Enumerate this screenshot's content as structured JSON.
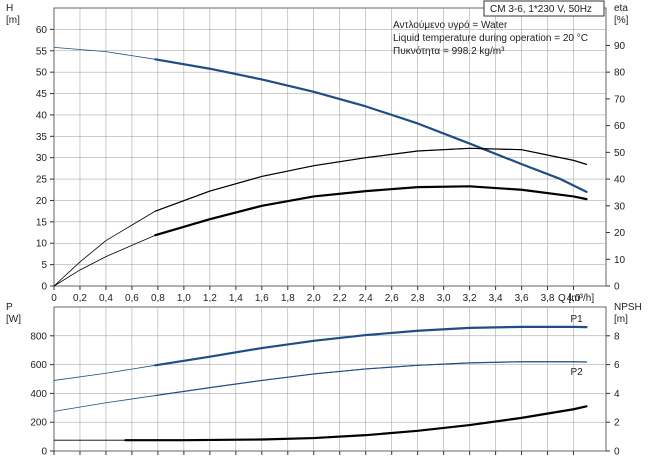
{
  "header": {
    "model_label": "CM 3-6, 1*230 V, 50Hz",
    "info_lines": [
      "Αντλούμενο υγρό = Water",
      "Liquid temperature during operation = 20 °C",
      "Πυκνότητα = 998.2 kg/m³"
    ]
  },
  "colors": {
    "blue": "#1f4e86",
    "black": "#000000",
    "grid": "#999999"
  },
  "chart_data": [
    {
      "type": "line",
      "name": "head-efficiency",
      "y_axis": {
        "letter": "H",
        "unit": "[m]",
        "lim": [
          0,
          65
        ],
        "ticks": [
          0,
          5,
          10,
          15,
          20,
          25,
          30,
          35,
          40,
          45,
          50,
          55,
          60
        ]
      },
      "y2_axis": {
        "letter": "eta",
        "unit": "[%]",
        "lim": [
          0,
          104
        ],
        "ticks": [
          0,
          10,
          20,
          30,
          40,
          50,
          60,
          70,
          80,
          90
        ]
      },
      "x_axis": {
        "label": "Q [m³/h]",
        "lim": [
          0,
          4.25
        ],
        "tick_values": [
          0,
          0.2,
          0.4,
          0.6,
          0.8,
          1.0,
          1.2,
          1.4,
          1.6,
          1.8,
          2.0,
          2.2,
          2.4,
          2.6,
          2.8,
          3.0,
          3.2,
          3.4,
          3.6,
          3.8,
          4.0
        ],
        "tick_labels": [
          "0",
          "0,2",
          "0,4",
          "0,6",
          "0,8",
          "1,0",
          "1,2",
          "1,4",
          "1,6",
          "1,8",
          "2,0",
          "2,2",
          "2,4",
          "2,6",
          "2,8",
          "3,0",
          "3,2",
          "3,4",
          "3,6",
          "3,8",
          "4,0"
        ]
      },
      "series": [
        {
          "axis": "y",
          "color": "blue",
          "width": 2.2,
          "from": 0.78,
          "x": [
            0,
            0.4,
            0.78,
            1.2,
            1.6,
            2.0,
            2.4,
            2.8,
            3.2,
            3.6,
            3.9,
            4.1
          ],
          "y": [
            55.8,
            54.8,
            53.0,
            50.8,
            48.3,
            45.4,
            42.0,
            38.0,
            33.3,
            28.5,
            25.0,
            22.0
          ]
        },
        {
          "axis": "y2",
          "color": "black",
          "width": 1.2,
          "from": 0.78,
          "x": [
            0,
            0.2,
            0.4,
            0.78,
            1.2,
            1.6,
            2.0,
            2.4,
            2.8,
            3.2,
            3.6,
            4.0,
            4.1
          ],
          "y": [
            0,
            9,
            17,
            28,
            35.5,
            41,
            45,
            48,
            50.5,
            51.5,
            51,
            47,
            45.5
          ]
        },
        {
          "axis": "y2",
          "color": "black",
          "width": 2.2,
          "from": 0.78,
          "x": [
            0,
            0.2,
            0.4,
            0.78,
            1.2,
            1.6,
            2.0,
            2.4,
            2.8,
            3.2,
            3.6,
            4.0,
            4.1
          ],
          "y": [
            0,
            6,
            11,
            19,
            25,
            30,
            33.5,
            35.5,
            37,
            37.3,
            36,
            33.5,
            32.5
          ]
        }
      ]
    },
    {
      "type": "line",
      "name": "power-npsh",
      "y_axis": {
        "letter": "P",
        "unit": "[W]",
        "lim": [
          0,
          1000
        ],
        "ticks": [
          0,
          200,
          400,
          600,
          800
        ]
      },
      "y2_axis": {
        "letter": "NPSH",
        "unit": "[m]",
        "lim": [
          0,
          10
        ],
        "ticks": [
          0,
          2,
          4,
          6,
          8
        ]
      },
      "x_axis": {
        "lim": [
          0,
          4.25
        ],
        "tick_values": [
          0,
          0.2,
          0.4,
          0.6,
          0.8,
          1.0,
          1.2,
          1.4,
          1.6,
          1.8,
          2.0,
          2.2,
          2.4,
          2.6,
          2.8,
          3.0,
          3.2,
          3.4,
          3.6,
          3.8,
          4.0
        ]
      },
      "series": [
        {
          "name": "P1",
          "axis": "y",
          "color": "blue",
          "width": 2.2,
          "from": 0.78,
          "x": [
            0,
            0.4,
            0.78,
            1.2,
            1.6,
            2.0,
            2.4,
            2.8,
            3.2,
            3.6,
            4.0,
            4.1
          ],
          "y": [
            490,
            540,
            595,
            655,
            715,
            765,
            805,
            835,
            855,
            862,
            862,
            860
          ]
        },
        {
          "name": "P2",
          "axis": "y",
          "color": "blue",
          "width": 1.2,
          "from": 0.78,
          "x": [
            0,
            0.4,
            0.78,
            1.2,
            1.6,
            2.0,
            2.4,
            2.8,
            3.2,
            3.6,
            4.0,
            4.1
          ],
          "y": [
            275,
            335,
            385,
            440,
            490,
            535,
            570,
            595,
            612,
            620,
            620,
            618
          ]
        },
        {
          "axis": "y2",
          "color": "black",
          "width": 2.2,
          "from": 0.55,
          "x": [
            0,
            0.55,
            1.0,
            1.6,
            2.0,
            2.4,
            2.8,
            3.2,
            3.6,
            4.0,
            4.1
          ],
          "y": [
            0.75,
            0.75,
            0.75,
            0.8,
            0.9,
            1.1,
            1.4,
            1.8,
            2.3,
            2.9,
            3.1
          ]
        }
      ]
    }
  ]
}
